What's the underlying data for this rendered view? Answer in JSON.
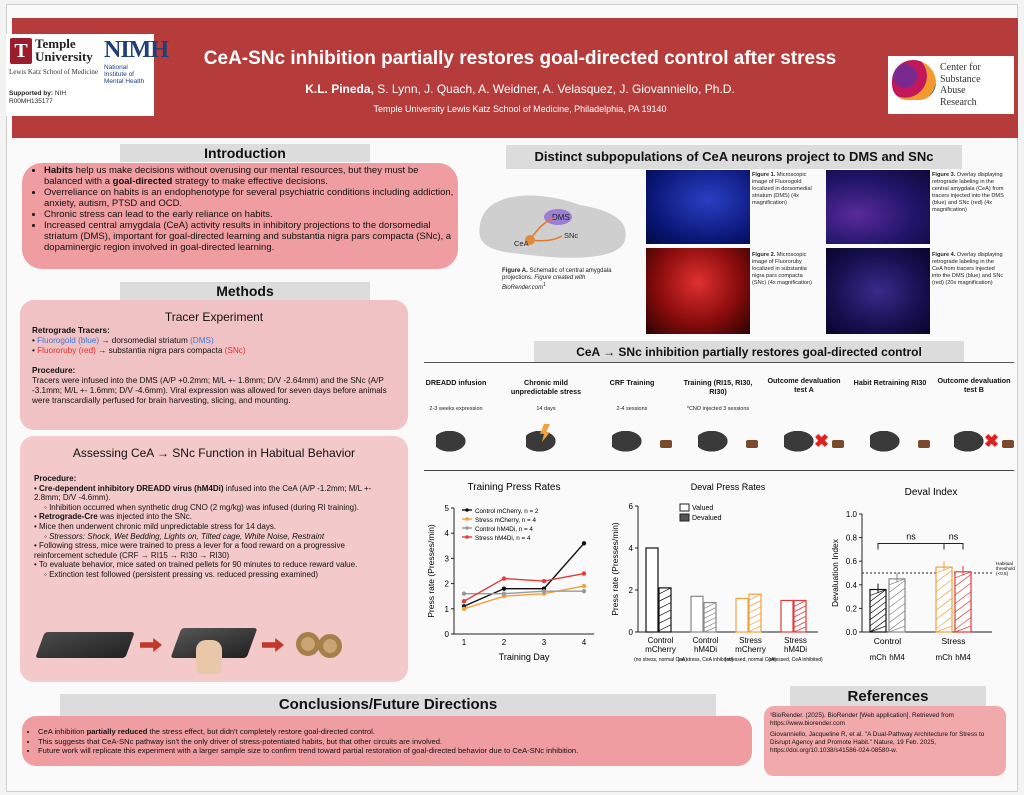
{
  "header": {
    "title": "CeA-SNc inhibition partially restores goal-directed control after stress",
    "authors_lead": "K.L. Pineda,",
    "authors_rest": " S. Lynn, J. Quach, A. Weidner, A. Velasquez, J. Giovanniello, Ph.D.",
    "affiliation": "Temple University Lewis Katz School of Medicine, Philadelphia, PA 19140",
    "temple_name_1": "Temple",
    "temple_name_2": "University",
    "temple_school": "Lewis Katz School of Medicine",
    "nimh_mark": "NIMH",
    "nimh_sub": "National Institute of Mental Health",
    "support_label": "Supported by:",
    "support_org": " NIH",
    "support_grant": "R00MH135177",
    "csar_lines": [
      "Center for",
      "Substance",
      "Abuse",
      "Research"
    ]
  },
  "introduction": {
    "heading": "Introduction",
    "items": [
      {
        "bold1": "Habits",
        "text1": " help us make decisions without overusing our mental resources, but they must be balanced with a ",
        "bold2": "goal-directed",
        "text2": " strategy to make effective decisions."
      },
      {
        "bold1": "",
        "text1": "Overreliance on habits is an endophenotype for several psychiatric conditions including addiction, anxiety, autism, PTSD and OCD.",
        "bold2": "",
        "text2": ""
      },
      {
        "bold1": "",
        "text1": "Chronic stress can lead to the early reliance on habits.",
        "bold2": "",
        "text2": ""
      },
      {
        "bold1": "",
        "text1": "Increased central amygdala (CeA) activity results in inhibitory projections to the dorsomedial striatum (DMS), important for goal-directed learning and substantia nigra pars compacta (SNc), a dopaminergic region involved in goal-directed learning.",
        "bold2": "",
        "text2": ""
      }
    ]
  },
  "methods": {
    "heading": "Methods",
    "tracer_heading": "Tracer Experiment",
    "retro_label": "Retrograde Tracers:",
    "tracer1_color": "Fluorogold (blue)",
    "tracer1_rest": " → dorsomedial striatum ",
    "tracer1_region": "(DMS)",
    "tracer2_color": "Fluororuby (red)",
    "tracer2_rest": " → substantia nigra pars compacta ",
    "tracer2_region": "(SNc)",
    "procedure_label": "Procedure:",
    "procedure_text": "Tracers were infused into the DMS (A/P +0.2mm; M/L +- 1.8mm; D/V -2.64mm) and the SNc (A/P -3.1mm; M/L +- 1.6mm; D/V -4.6mm). Viral expression was allowed for seven days before animals were transcardially perfused for brain harvesting, slicing, and mounting.",
    "assess_heading": "Assessing CeA → SNc Function in Habitual Behavior",
    "assess_procedure_label": "Procedure:",
    "assess_items": [
      {
        "bold": "Cre-dependent inhibitory DREADD virus (hM4Di)",
        "text": " infused into the CeA (A/P -1.2mm; M/L +- 2.8mm; D/V -4.6mm).",
        "sub": "Inhibition occurred when synthetic drug CNO (2 mg/kg) was infused (during RI training)."
      },
      {
        "bold": "Retrograde-Cre",
        "text": " was injected into the SNc.",
        "sub": ""
      },
      {
        "bold": "",
        "text": "Mice then underwent chronic mild unpredictable stress for 14 days.",
        "sub": "Stressors: Shock, Wet Bedding, Lights on, Tilted cage, White Noise, Restraint"
      },
      {
        "bold": "",
        "text": "Following stress, mice were trained to press a lever for a food reward on a progressive reinforcement schedule (CRF → RI15 → RI30 → RI30)",
        "sub": ""
      },
      {
        "bold": "",
        "text": "To evaluate behavior, mice sated on trained pellets for 90 minutes to reduce reward value.",
        "sub": "Extinction test followed (persistent pressing vs. reduced pressing examined)"
      }
    ]
  },
  "subpop": {
    "heading": "Distinct subpopulations of CeA neurons project to DMS and SNc",
    "schematic_dms": "DMS",
    "schematic_snc": "SNc",
    "schematic_cea": "CeA",
    "figA_label": "Figure A.",
    "figA_text": " Schematic of central amygdala projections. ",
    "figA_credit": "Figure created with BioRender.com",
    "figA_ref": "1",
    "fig1_label": "Figure 1.",
    "fig1_text": " Microscopic image of Fluorogold localized in dorsomedial striatum (DMS) (4x magnification)",
    "fig2_label": "Figure 2.",
    "fig2_text": " Microscopic image of Fluororuby localized in substantia nigra pars compacta (SNc) (4x magnification)",
    "fig3_label": "Figure 3.",
    "fig3_text": " Overlay displaying retrograde labeling in the central amygdala (CeA) from tracers injected into the DMS (blue) and SNc (red) (4x magnification)",
    "fig4_label": "Figure 4.",
    "fig4_text": " Overlay displaying retrograde labeling in the CeA from tracers injected into the DMS (blue) and SNc (red) (20x magnification)"
  },
  "timeline": {
    "heading": "CeA → SNc inhibition partially restores goal-directed control",
    "steps": [
      {
        "label": "DREADD infusion",
        "sub": "2-3 weeks expression"
      },
      {
        "label": "Chronic mild unpredictable stress",
        "sub": "14 days"
      },
      {
        "label": "CRF Training",
        "sub": "2-4 sessions"
      },
      {
        "label": "Training (RI15, RI30, RI30)",
        "sub": "*CNO injected 3 sessions"
      },
      {
        "label": "Outcome devaluation test A",
        "sub": ""
      },
      {
        "label": "Habit Retraining RI30",
        "sub": ""
      },
      {
        "label": "Outcome devaluation test B",
        "sub": ""
      }
    ]
  },
  "chart_data": [
    {
      "type": "line",
      "title": "Training Press Rates",
      "xlabel": "Training Day",
      "ylabel": "Press rate (Presses/min)",
      "x": [
        1,
        2,
        3,
        4
      ],
      "ylim": [
        0,
        5
      ],
      "yticks": [
        0,
        1,
        2,
        3,
        4,
        5
      ],
      "series": [
        {
          "name": "Control mCherry, n = 2",
          "color": "#111111",
          "values": [
            1.1,
            1.8,
            1.8,
            3.6
          ]
        },
        {
          "name": "Stress mCherry, n = 4",
          "color": "#f2a03d",
          "values": [
            1.0,
            1.5,
            1.6,
            1.9
          ]
        },
        {
          "name": "Control hM4Di, n = 4",
          "color": "#9a9a9a",
          "values": [
            1.6,
            1.6,
            1.7,
            1.7
          ]
        },
        {
          "name": "Stress hM4Di, n = 4",
          "color": "#e23b3b",
          "values": [
            1.3,
            2.2,
            2.1,
            2.4
          ]
        }
      ]
    },
    {
      "type": "bar",
      "title": "Deval Press Rates",
      "ylabel": "Press rate (Presses/min)",
      "ylim": [
        0,
        6
      ],
      "yticks": [
        0,
        2,
        4,
        6
      ],
      "legend": [
        "Valued",
        "Devalued"
      ],
      "categories": [
        {
          "name": "Control mCherry",
          "note": "(no stress, normal CeA)"
        },
        {
          "name": "Control hM4Di",
          "note": "(no stress, CeA inhibited)"
        },
        {
          "name": "Stress mCherry",
          "note": "(stressed, normal CeA)"
        },
        {
          "name": "Stress hM4Di",
          "note": "(stressed, CeA inhibited)"
        }
      ],
      "series": [
        {
          "name": "Valued",
          "values": [
            4.0,
            1.7,
            1.6,
            1.5
          ]
        },
        {
          "name": "Devalued",
          "values": [
            2.1,
            1.4,
            1.8,
            1.5
          ]
        }
      ],
      "colors": [
        "#111111",
        "#888888",
        "#f2a03d",
        "#e23b3b"
      ]
    },
    {
      "type": "bar",
      "title": "Deval Index",
      "ylabel": "Devaluation Index",
      "ylim": [
        0,
        1.0
      ],
      "yticks": [
        "0.0",
        "0.2",
        "0.4",
        "0.6",
        "0.8",
        "1.0"
      ],
      "groups": [
        "Control",
        "Stress"
      ],
      "sublabels": [
        "mCh",
        "hM4",
        "mCh",
        "hM4"
      ],
      "values": [
        0.36,
        0.45,
        0.55,
        0.51
      ],
      "colors": [
        "#111111",
        "#888888",
        "#f2a03d",
        "#e23b3b"
      ],
      "threshold": 0.5,
      "threshold_label": "Habitual threshold (<0.5)",
      "significance": [
        "ns",
        "ns"
      ]
    }
  ],
  "conclusions": {
    "heading": "Conclusions/Future Directions",
    "items": [
      {
        "pre": "CeA inhibition ",
        "bold": "partially reduced",
        "post": " the stress effect, but didn't completely restore goal-directed control."
      },
      {
        "pre": "This suggests that CeA-SNc pathway isn't the only driver of stress-potentiated habits, but that other circuits are involved.",
        "bold": "",
        "post": ""
      },
      {
        "pre": "Future work will replicate this experiment with a larger sample size to confirm trend toward partial restoration of goal-directed behavior due to CeA-SNc inhibition.",
        "bold": "",
        "post": ""
      }
    ]
  },
  "references": {
    "heading": "References",
    "ref1": "¹BioRender. (2025). BioRender [Web application]. Retrieved from https://www.biorender.com",
    "ref2": "Giovanniello, Jacqueline R, et al. \"A Dual-Pathway Architecture for Stress to Disrupt Agency and Promote Habit.\" Nature, 19 Feb. 2025, https://doi.org/10.1038/s41586-024-08580-w."
  }
}
